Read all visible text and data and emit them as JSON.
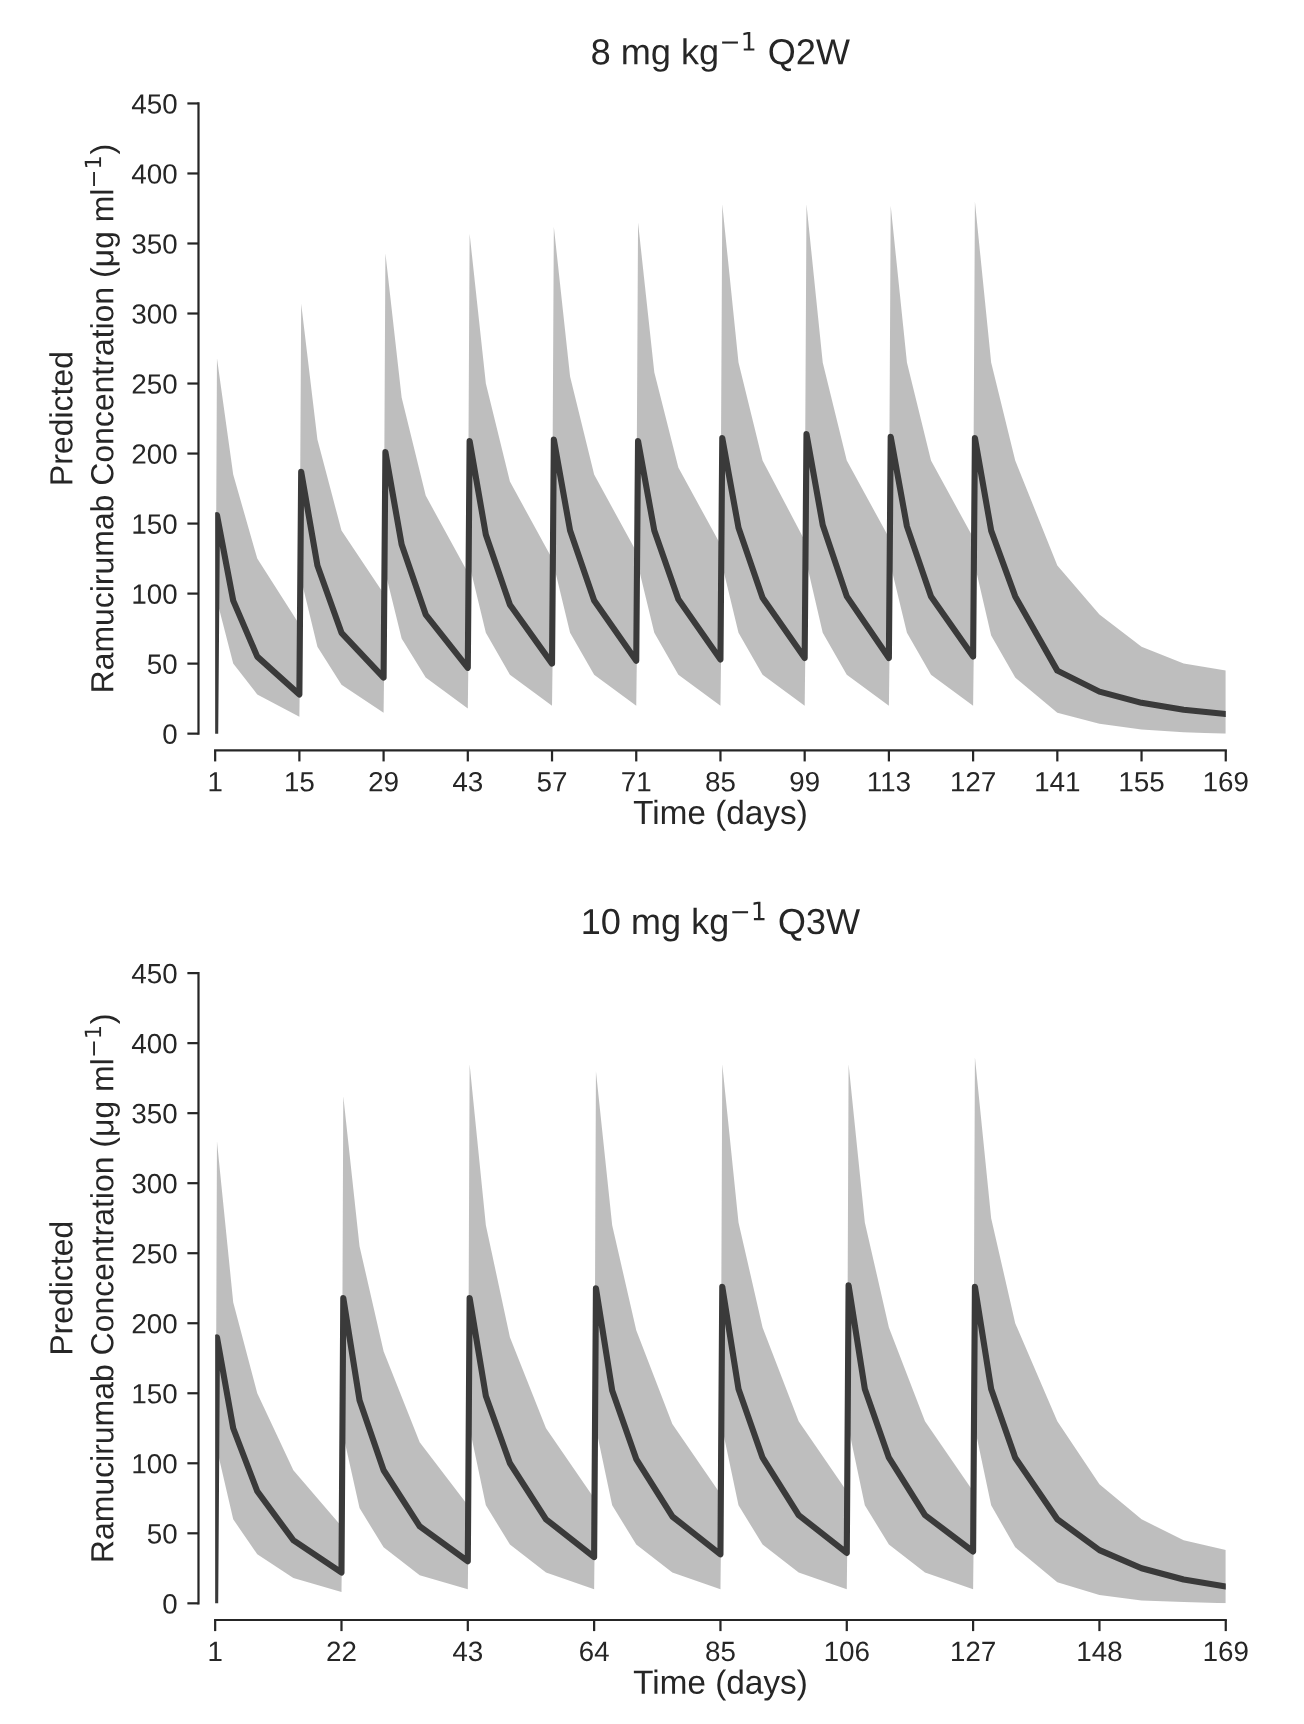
{
  "chart_data": [
    {
      "type": "line",
      "title": "8 mg kg$^{−1}$ Q2W",
      "xlabel": "Time (days)",
      "ylabel": "Predicted\nRamucirumab Concentration (μg ml$^{−1}$)",
      "xlim": [
        1,
        169
      ],
      "xticks": [
        1,
        15,
        29,
        43,
        57,
        71,
        85,
        99,
        113,
        127,
        141,
        155,
        169
      ],
      "ylim": [
        0,
        450
      ],
      "yticks": [
        0,
        50,
        100,
        150,
        200,
        250,
        300,
        350,
        400,
        450
      ],
      "grid": false,
      "legend": false,
      "series": [
        {
          "color": "#3a3a3a",
          "x": [
            1,
            1.3,
            4,
            8,
            15,
            15.3,
            18,
            22,
            29,
            29.3,
            32,
            36,
            43,
            43.3,
            46,
            50,
            57,
            57.3,
            60,
            64,
            71,
            71.3,
            74,
            78,
            85,
            85.3,
            88,
            92,
            99,
            99.3,
            102,
            106,
            113,
            113.3,
            116,
            120,
            127,
            127.3,
            130,
            134,
            141,
            148,
            155,
            162,
            169
          ],
          "values": [
            0,
            156,
            95,
            55,
            28,
            187,
            120,
            72,
            40,
            201,
            135,
            85,
            47,
            209,
            142,
            92,
            50,
            210,
            145,
            95,
            52,
            209,
            145,
            96,
            53,
            211,
            147,
            97,
            54,
            214,
            149,
            98,
            54,
            212,
            148,
            98,
            55,
            211,
            145,
            98,
            45,
            30,
            22,
            17,
            14
          ],
          "upper": [
            0,
            268,
            185,
            125,
            78,
            307,
            210,
            145,
            100,
            343,
            240,
            170,
            115,
            357,
            250,
            180,
            125,
            362,
            255,
            185,
            130,
            365,
            258,
            190,
            135,
            378,
            265,
            195,
            138,
            378,
            265,
            195,
            140,
            377,
            265,
            195,
            140,
            380,
            265,
            195,
            120,
            85,
            62,
            50,
            45
          ],
          "lower": [
            0,
            95,
            50,
            28,
            12,
            110,
            62,
            35,
            15,
            115,
            68,
            40,
            18,
            120,
            72,
            42,
            20,
            120,
            72,
            42,
            20,
            120,
            72,
            42,
            20,
            120,
            72,
            42,
            20,
            122,
            72,
            42,
            20,
            120,
            72,
            42,
            20,
            120,
            70,
            40,
            15,
            7,
            3,
            1,
            0
          ]
        }
      ]
    },
    {
      "type": "line",
      "title": "10 mg kg$^{−1}$ Q3W",
      "xlabel": "Time (days)",
      "ylabel": "Predicted\nRamucirumab Concentration (μg ml$^{−1}$)",
      "xlim": [
        1,
        169
      ],
      "xticks": [
        1,
        22,
        43,
        64,
        85,
        106,
        127,
        148,
        169
      ],
      "ylim": [
        0,
        450
      ],
      "yticks": [
        0,
        50,
        100,
        150,
        200,
        250,
        300,
        350,
        400,
        450
      ],
      "grid": false,
      "legend": false,
      "series": [
        {
          "color": "#3a3a3a",
          "x": [
            1,
            1.3,
            4,
            8,
            14,
            22,
            22.3,
            25,
            29,
            35,
            43,
            43.3,
            46,
            50,
            56,
            64,
            64.3,
            67,
            71,
            77,
            85,
            85.3,
            88,
            92,
            98,
            106,
            106.3,
            109,
            113,
            119,
            127,
            127.3,
            130,
            134,
            141,
            148,
            155,
            162,
            169
          ],
          "values": [
            0,
            190,
            125,
            80,
            45,
            22,
            218,
            145,
            95,
            55,
            30,
            218,
            148,
            100,
            60,
            33,
            225,
            152,
            103,
            62,
            35,
            226,
            153,
            104,
            63,
            36,
            227,
            153,
            104,
            63,
            37,
            226,
            153,
            104,
            60,
            38,
            25,
            17,
            12
          ],
          "upper": [
            0,
            330,
            215,
            150,
            95,
            55,
            362,
            255,
            180,
            115,
            70,
            385,
            270,
            190,
            125,
            75,
            380,
            270,
            195,
            128,
            78,
            385,
            272,
            197,
            130,
            80,
            385,
            272,
            197,
            130,
            80,
            390,
            275,
            200,
            130,
            85,
            60,
            45,
            38
          ],
          "lower": [
            0,
            110,
            60,
            35,
            18,
            8,
            120,
            68,
            40,
            20,
            10,
            125,
            70,
            42,
            22,
            10,
            125,
            70,
            42,
            22,
            10,
            125,
            70,
            42,
            22,
            10,
            125,
            70,
            42,
            22,
            10,
            125,
            70,
            40,
            15,
            6,
            2,
            1,
            0
          ]
        }
      ]
    }
  ]
}
